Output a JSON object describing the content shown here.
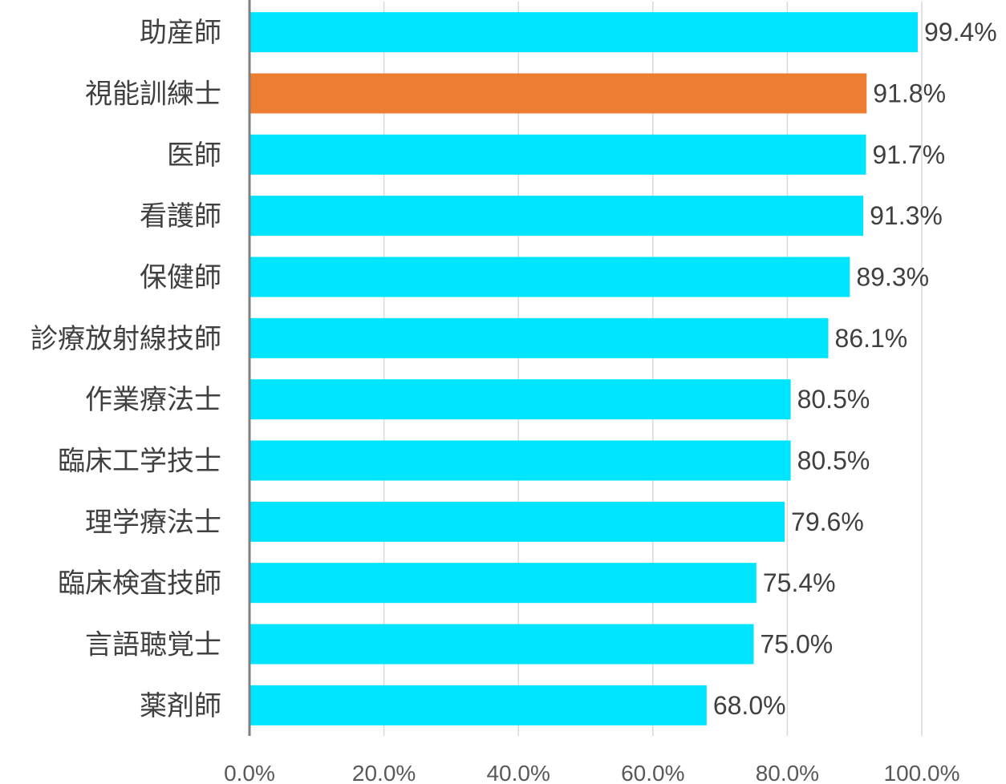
{
  "chart_data": {
    "type": "bar",
    "orientation": "horizontal",
    "categories": [
      "助産師",
      "視能訓練士",
      "医師",
      "看護師",
      "保健師",
      "診療放射線技師",
      "作業療法士",
      "臨床工学技士",
      "理学療法士",
      "臨床検査技師",
      "言語聴覚士",
      "薬剤師"
    ],
    "values": [
      99.4,
      91.8,
      91.7,
      91.3,
      89.3,
      86.1,
      80.5,
      80.5,
      79.6,
      75.4,
      75.0,
      68.0
    ],
    "value_labels": [
      "99.4%",
      "91.8%",
      "91.7%",
      "91.3%",
      "89.3%",
      "86.1%",
      "80.5%",
      "80.5%",
      "79.6%",
      "75.4%",
      "75.0%",
      "68.0%"
    ],
    "xlim": [
      0,
      100
    ],
    "x_ticks": [
      0,
      20,
      40,
      60,
      80,
      100
    ],
    "x_tick_labels": [
      "0.0%",
      "20.0%",
      "40.0%",
      "60.0%",
      "80.0%",
      "100.0%"
    ],
    "grid": "vertical",
    "legend": "none",
    "colors": {
      "default_bar": "#00e5ff",
      "highlight_bar": "#ed7d31",
      "highlight_category": "視能訓練士"
    }
  }
}
